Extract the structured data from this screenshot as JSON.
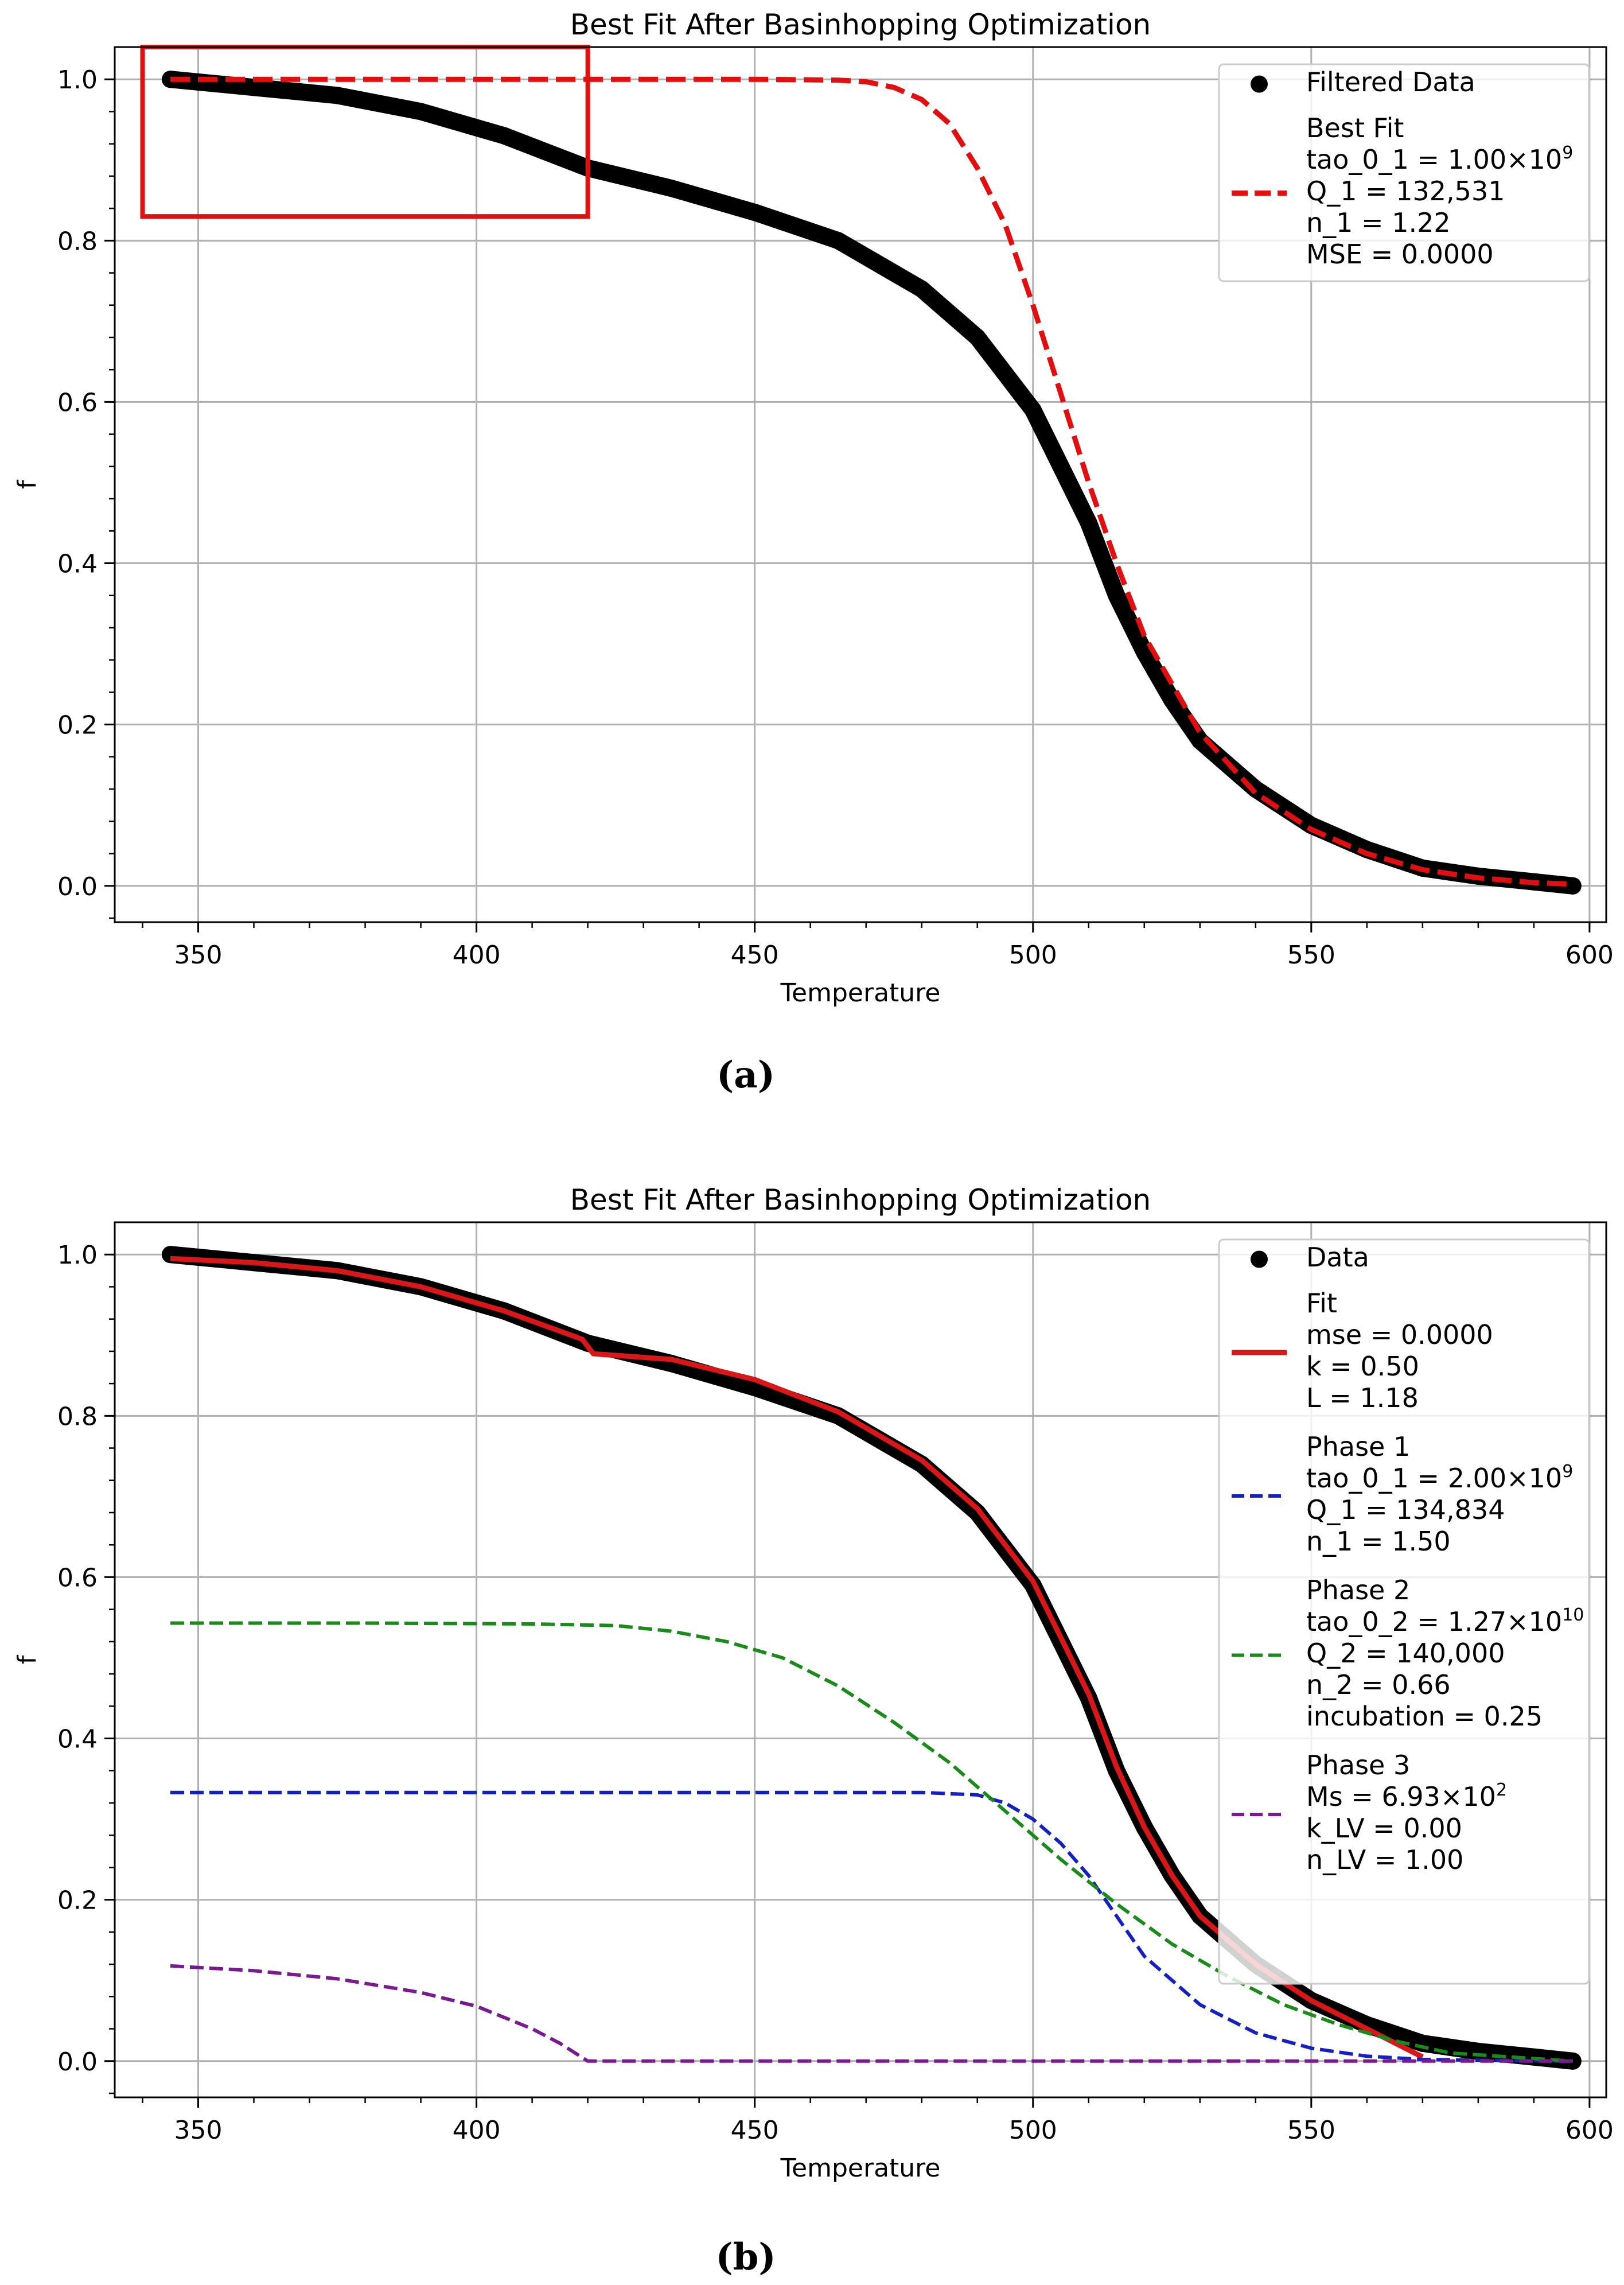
{
  "chart_data": [
    {
      "type": "line",
      "panel_label": "(a)",
      "title": "Best Fit After Basinhopping Optimization",
      "xlabel": "Temperature",
      "ylabel": "f",
      "xlim": [
        335,
        603
      ],
      "ylim": [
        -0.045,
        1.04
      ],
      "xticks": [
        350,
        400,
        450,
        500,
        550,
        600
      ],
      "yticks": [
        0.0,
        0.2,
        0.4,
        0.6,
        0.8,
        1.0
      ],
      "grid": true,
      "legend_position": "top-right",
      "series": [
        {
          "name": "Filtered Data",
          "style": "markers",
          "color": "#000000",
          "x": [
            345,
            360,
            375,
            390,
            405,
            420,
            435,
            450,
            465,
            480,
            490,
            500,
            505,
            510,
            515,
            520,
            525,
            530,
            540,
            550,
            560,
            570,
            580,
            590,
            597
          ],
          "y": [
            1.0,
            0.99,
            0.98,
            0.96,
            0.93,
            0.89,
            0.865,
            0.835,
            0.8,
            0.74,
            0.68,
            0.59,
            0.52,
            0.45,
            0.36,
            0.29,
            0.23,
            0.18,
            0.12,
            0.075,
            0.045,
            0.022,
            0.012,
            0.005,
            0.0
          ]
        },
        {
          "name": "Best Fit",
          "style": "dashed",
          "color": "#e01010",
          "x": [
            345,
            400,
            450,
            465,
            470,
            475,
            480,
            485,
            490,
            495,
            500,
            505,
            510,
            515,
            520,
            530,
            540,
            550,
            560,
            570,
            580,
            590,
            597
          ],
          "y": [
            1.0,
            1.0,
            1.0,
            0.999,
            0.997,
            0.99,
            0.975,
            0.945,
            0.89,
            0.82,
            0.72,
            0.61,
            0.5,
            0.4,
            0.31,
            0.19,
            0.115,
            0.07,
            0.04,
            0.02,
            0.01,
            0.004,
            0.002
          ]
        }
      ],
      "legend": [
        {
          "label": "Filtered Data",
          "marker": "dot",
          "lines": [
            "Filtered Data"
          ]
        },
        {
          "label": "Best Fit",
          "marker": "dashed",
          "color": "#e01010",
          "lines": [
            "Best Fit",
            "tao_0_1 = 1.00×10",
            "Q_1 = 132,531",
            "n_1 = 1.22",
            "MSE = 0.0000"
          ],
          "exponents": [
            "",
            "9",
            "",
            "",
            ""
          ]
        }
      ],
      "annotations": [
        {
          "type": "rectangle",
          "color": "#e01010",
          "x_range": [
            340,
            420
          ],
          "y_range": [
            0.83,
            1.04
          ]
        }
      ]
    },
    {
      "type": "line",
      "panel_label": "(b)",
      "title": "Best Fit After Basinhopping Optimization",
      "xlabel": "Temperature",
      "ylabel": "f",
      "xlim": [
        335,
        603
      ],
      "ylim": [
        -0.045,
        1.04
      ],
      "xticks": [
        350,
        400,
        450,
        500,
        550,
        600
      ],
      "yticks": [
        0.0,
        0.2,
        0.4,
        0.6,
        0.8,
        1.0
      ],
      "grid": true,
      "legend_position": "top-right",
      "series": [
        {
          "name": "Data",
          "style": "markers",
          "color": "#000000",
          "x": [
            345,
            360,
            375,
            390,
            405,
            420,
            435,
            450,
            465,
            480,
            490,
            500,
            505,
            510,
            515,
            520,
            525,
            530,
            540,
            550,
            560,
            570,
            580,
            590,
            597
          ],
          "y": [
            1.0,
            0.99,
            0.98,
            0.96,
            0.93,
            0.89,
            0.865,
            0.835,
            0.8,
            0.74,
            0.68,
            0.59,
            0.52,
            0.45,
            0.36,
            0.29,
            0.23,
            0.18,
            0.12,
            0.075,
            0.045,
            0.022,
            0.012,
            0.005,
            0.0
          ]
        },
        {
          "name": "Fit",
          "style": "solid",
          "color": "#d81818",
          "x": [
            345,
            360,
            375,
            390,
            405,
            419,
            421,
            435,
            450,
            465,
            480,
            490,
            500,
            505,
            510,
            515,
            520,
            525,
            530,
            540,
            550,
            560,
            570
          ],
          "y": [
            0.995,
            0.99,
            0.98,
            0.96,
            0.93,
            0.895,
            0.877,
            0.87,
            0.845,
            0.805,
            0.745,
            0.685,
            0.595,
            0.525,
            0.455,
            0.365,
            0.29,
            0.23,
            0.18,
            0.12,
            0.075,
            0.04,
            0.005
          ]
        },
        {
          "name": "Phase 1",
          "style": "dashed",
          "color": "#1420c0",
          "x": [
            345,
            400,
            450,
            480,
            490,
            495,
            500,
            505,
            510,
            515,
            520,
            530,
            540,
            550,
            560,
            570,
            580,
            597
          ],
          "y": [
            0.333,
            0.333,
            0.333,
            0.333,
            0.33,
            0.32,
            0.3,
            0.27,
            0.23,
            0.18,
            0.13,
            0.07,
            0.035,
            0.016,
            0.006,
            0.002,
            0.001,
            0.0
          ]
        },
        {
          "name": "Phase 2",
          "style": "dashed",
          "color": "#1a8a1a",
          "x": [
            345,
            380,
            410,
            425,
            435,
            445,
            455,
            465,
            475,
            485,
            495,
            505,
            515,
            525,
            535,
            545,
            555,
            565,
            575,
            597
          ],
          "y": [
            0.543,
            0.543,
            0.542,
            0.54,
            0.533,
            0.52,
            0.5,
            0.465,
            0.42,
            0.37,
            0.31,
            0.25,
            0.195,
            0.145,
            0.105,
            0.07,
            0.045,
            0.025,
            0.01,
            0.0
          ]
        },
        {
          "name": "Phase 3",
          "style": "dashed",
          "color": "#7a1a90",
          "x": [
            345,
            360,
            375,
            390,
            400,
            410,
            415,
            420,
            500,
            597
          ],
          "y": [
            0.118,
            0.112,
            0.102,
            0.085,
            0.068,
            0.04,
            0.022,
            0.0,
            0.0,
            0.0
          ]
        }
      ],
      "legend": [
        {
          "label": "Data",
          "marker": "dot",
          "lines": [
            "Data"
          ]
        },
        {
          "label": "Fit",
          "marker": "solid",
          "color": "#d81818",
          "lines": [
            "Fit",
            "mse = 0.0000",
            "k = 0.50",
            "L = 1.18"
          ]
        },
        {
          "label": "Phase 1",
          "marker": "dashed",
          "color": "#1420c0",
          "lines": [
            "Phase 1",
            "tao_0_1 = 2.00×10",
            "Q_1 = 134,834",
            "n_1 = 1.50"
          ],
          "exponents": [
            "",
            "9",
            "",
            ""
          ]
        },
        {
          "label": "Phase 2",
          "marker": "dashed",
          "color": "#1a8a1a",
          "lines": [
            "Phase 2",
            "tao_0_2 = 1.27×10",
            "Q_2 = 140,000",
            "n_2 = 0.66",
            "incubation = 0.25"
          ],
          "exponents": [
            "",
            "10",
            "",
            "",
            ""
          ]
        },
        {
          "label": "Phase 3",
          "marker": "dashed",
          "color": "#7a1a90",
          "lines": [
            "Phase 3",
            "Ms = 6.93×10",
            "k_LV = 0.00",
            "n_LV = 1.00"
          ],
          "exponents": [
            "",
            "2",
            "",
            ""
          ]
        }
      ]
    }
  ]
}
